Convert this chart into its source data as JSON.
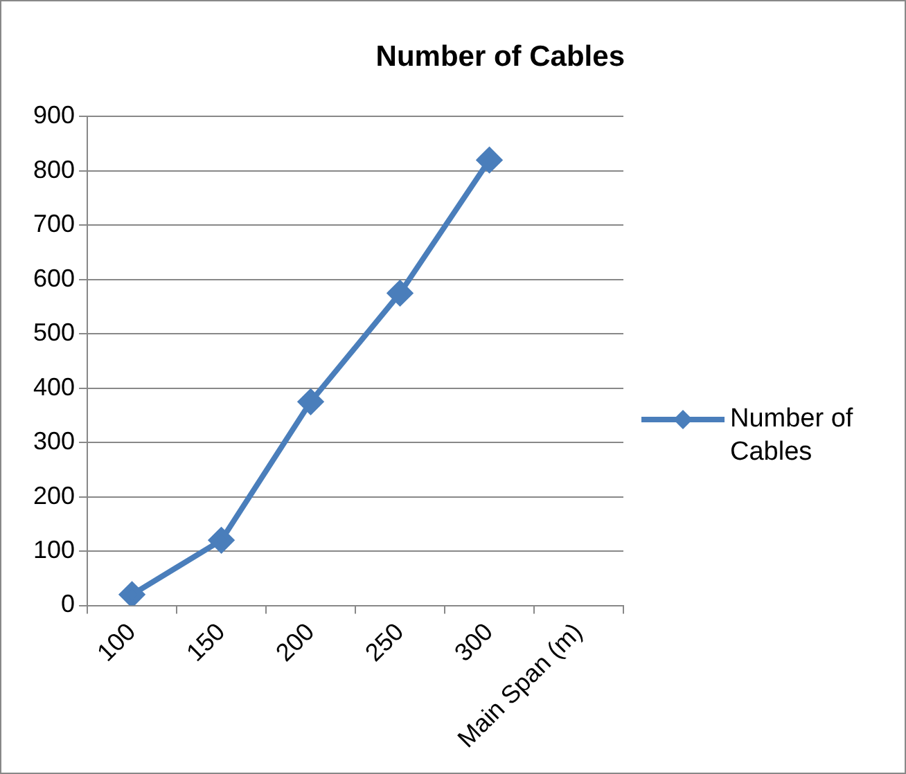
{
  "chart_data": {
    "type": "line",
    "title": "Number of Cables",
    "categories": [
      "100",
      "150",
      "200",
      "250",
      "300",
      "Main Span (m)"
    ],
    "series": [
      {
        "name": "Number of Cables",
        "color": "#4a7ebb",
        "values": [
          20,
          120,
          375,
          575,
          820,
          null
        ]
      }
    ],
    "ylim": [
      0,
      900
    ],
    "yticks": [
      0,
      100,
      200,
      300,
      400,
      500,
      600,
      700,
      800,
      900
    ],
    "grid": "y",
    "legend": "right",
    "marker": "diamond",
    "line_style": "solid"
  }
}
